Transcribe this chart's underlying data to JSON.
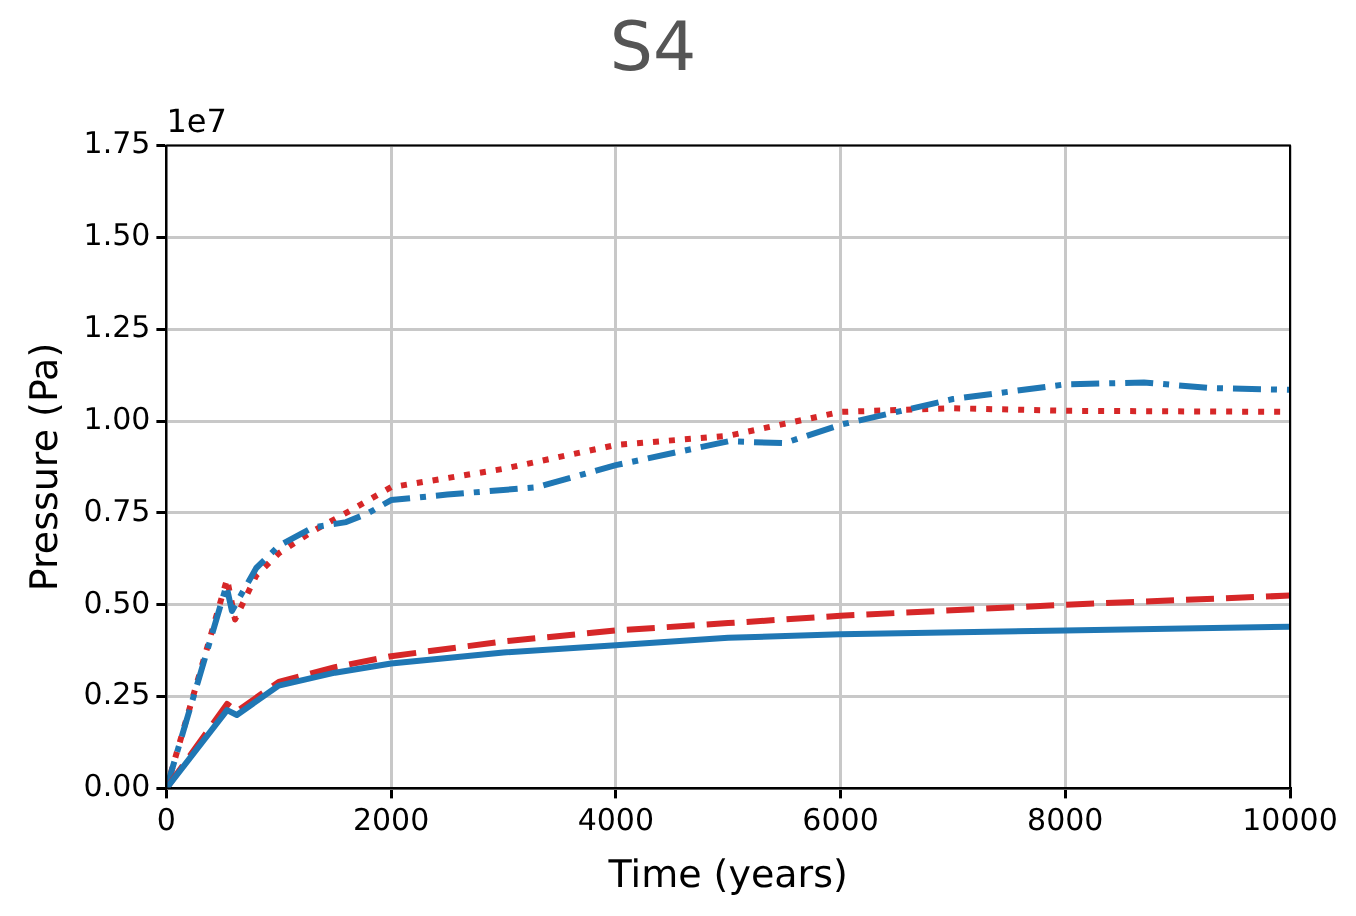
{
  "chart_data": {
    "type": "line",
    "title": "S4",
    "xlabel": "Time (years)",
    "ylabel": "Pressure (Pa)",
    "annotations": [
      "1e7"
    ],
    "xlim": [
      0,
      10000
    ],
    "xticks": [
      0,
      2000,
      4000,
      6000,
      8000,
      10000
    ],
    "ylim": [
      0,
      1.75
    ],
    "yticks": [
      {
        "value": 0,
        "label": "0.00"
      },
      0.25,
      {
        "value": 0.5,
        "label": "0.50"
      },
      0.75,
      {
        "value": 1,
        "label": "1.00"
      },
      1.25,
      {
        "value": 1.5,
        "label": "1.50"
      },
      1.75
    ],
    "grid": true,
    "legend": false,
    "marker": "none",
    "series": [
      {
        "color": "#1f77b4",
        "line_style": "solid",
        "x": [
          0,
          540,
          627,
          1000,
          1500,
          2000,
          3000,
          4000,
          5000,
          6000,
          8000,
          10000
        ],
        "values": [
          0,
          0.213,
          0.2,
          0.28,
          0.315,
          0.34,
          0.37,
          0.39,
          0.41,
          0.42,
          0.43,
          0.44
        ]
      },
      {
        "color": "#d62728",
        "line_style": "dashed",
        "x": [
          0,
          540,
          627,
          1000,
          1500,
          2000,
          3000,
          4000,
          5000,
          6000,
          8000,
          10000
        ],
        "values": [
          0,
          0.23,
          0.21,
          0.29,
          0.33,
          0.36,
          0.4,
          0.43,
          0.45,
          0.47,
          0.5,
          0.525
        ]
      },
      {
        "color": "#1f77b4",
        "line_style": "dashdot",
        "x": [
          0,
          534,
          583,
          800,
          1000,
          1300,
          1600,
          1800,
          2000,
          2500,
          3300,
          4000,
          5000,
          5500,
          6000,
          7000,
          8000,
          8700,
          9300,
          10000
        ],
        "values": [
          0,
          0.552,
          0.483,
          0.6,
          0.66,
          0.71,
          0.725,
          0.75,
          0.785,
          0.8,
          0.82,
          0.88,
          0.945,
          0.94,
          0.99,
          1.06,
          1.1,
          1.105,
          1.09,
          1.085
        ]
      },
      {
        "color": "#d62728",
        "line_style": "dotted",
        "x": [
          0,
          540,
          611,
          800,
          1000,
          1300,
          1600,
          2000,
          3000,
          4000,
          5000,
          6000,
          7000,
          8000,
          10000
        ],
        "values": [
          0,
          0.57,
          0.46,
          0.58,
          0.64,
          0.7,
          0.75,
          0.82,
          0.87,
          0.935,
          0.96,
          1.025,
          1.035,
          1.028,
          1.025
        ]
      }
    ]
  }
}
